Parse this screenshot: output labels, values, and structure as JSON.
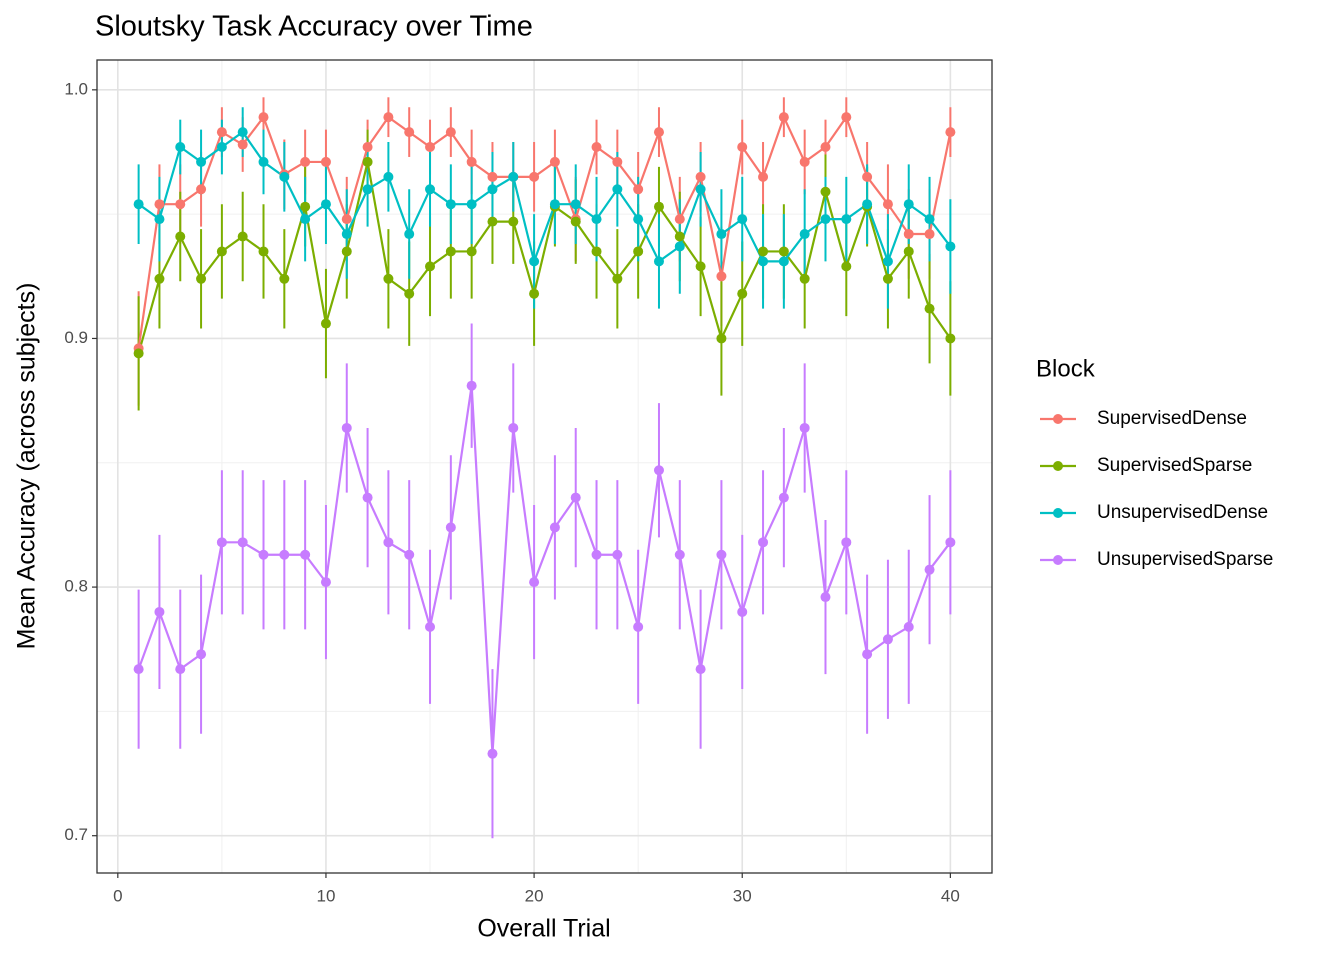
{
  "chart_data": {
    "type": "line",
    "title": "Sloutsky Task Accuracy over Time",
    "x_label": "Overall Trial",
    "y_label": "Mean Accuracy (across subjects)",
    "legend_title": "Block",
    "legend": "right",
    "grid": true,
    "xlim": [
      -1,
      42
    ],
    "ylim": [
      0.685,
      1.012
    ],
    "xticks": [
      0,
      10,
      20,
      30,
      40
    ],
    "minor_xticks": [
      5,
      15,
      25,
      35
    ],
    "yticks": [
      0.7,
      0.8,
      0.9,
      {
        "value": 1,
        "label": "1.0"
      }
    ],
    "minor_yticks": [
      0.75,
      0.85,
      0.95
    ],
    "x": [
      1,
      2,
      3,
      4,
      5,
      6,
      7,
      8,
      9,
      10,
      11,
      12,
      13,
      14,
      15,
      16,
      17,
      18,
      19,
      20,
      21,
      22,
      23,
      24,
      25,
      26,
      27,
      28,
      29,
      30,
      31,
      32,
      33,
      34,
      35,
      36,
      37,
      38,
      39,
      40
    ],
    "series": [
      {
        "name": "SupervisedDense",
        "color": "#F8766D",
        "values": [
          0.896,
          0.954,
          0.954,
          0.96,
          0.983,
          0.978,
          0.989,
          0.966,
          0.971,
          0.971,
          0.948,
          0.977,
          0.989,
          0.983,
          0.977,
          0.983,
          0.971,
          0.965,
          0.965,
          0.965,
          0.971,
          0.948,
          0.977,
          0.971,
          0.96,
          0.983,
          0.948,
          0.965,
          0.925,
          0.977,
          0.965,
          0.989,
          0.971,
          0.977,
          0.989,
          0.965,
          0.954,
          0.942,
          0.942,
          0.983
        ],
        "errors": [
          0.023,
          0.016,
          0.016,
          0.015,
          0.01,
          0.011,
          0.008,
          0.014,
          0.013,
          0.013,
          0.017,
          0.011,
          0.008,
          0.01,
          0.011,
          0.01,
          0.013,
          0.014,
          0.014,
          0.014,
          0.013,
          0.017,
          0.011,
          0.013,
          0.015,
          0.01,
          0.017,
          0.014,
          0.02,
          0.011,
          0.014,
          0.008,
          0.013,
          0.011,
          0.008,
          0.014,
          0.016,
          0.018,
          0.018,
          0.01
        ]
      },
      {
        "name": "SupervisedSparse",
        "color": "#7CAE00",
        "values": [
          0.894,
          0.924,
          0.941,
          0.924,
          0.935,
          0.941,
          0.935,
          0.924,
          0.953,
          0.906,
          0.935,
          0.971,
          0.924,
          0.918,
          0.929,
          0.935,
          0.935,
          0.947,
          0.947,
          0.918,
          0.953,
          0.947,
          0.935,
          0.924,
          0.935,
          0.953,
          0.941,
          0.929,
          0.9,
          0.918,
          0.935,
          0.935,
          0.924,
          0.959,
          0.929,
          0.953,
          0.924,
          0.935,
          0.912,
          0.9
        ],
        "errors": [
          0.023,
          0.02,
          0.018,
          0.02,
          0.019,
          0.018,
          0.019,
          0.02,
          0.016,
          0.022,
          0.019,
          0.013,
          0.02,
          0.021,
          0.02,
          0.019,
          0.019,
          0.017,
          0.017,
          0.021,
          0.016,
          0.017,
          0.019,
          0.02,
          0.019,
          0.016,
          0.018,
          0.02,
          0.023,
          0.021,
          0.019,
          0.019,
          0.02,
          0.015,
          0.02,
          0.016,
          0.02,
          0.019,
          0.022,
          0.023
        ]
      },
      {
        "name": "UnsupervisedDense",
        "color": "#00BFC4",
        "values": [
          0.954,
          0.948,
          0.977,
          0.971,
          0.977,
          0.983,
          0.971,
          0.965,
          0.948,
          0.954,
          0.942,
          0.96,
          0.965,
          0.942,
          0.96,
          0.954,
          0.954,
          0.96,
          0.965,
          0.931,
          0.954,
          0.954,
          0.948,
          0.96,
          0.948,
          0.931,
          0.937,
          0.96,
          0.942,
          0.948,
          0.931,
          0.931,
          0.942,
          0.948,
          0.948,
          0.954,
          0.931,
          0.954,
          0.948,
          0.937
        ],
        "errors": [
          0.016,
          0.017,
          0.011,
          0.013,
          0.011,
          0.01,
          0.013,
          0.014,
          0.017,
          0.016,
          0.018,
          0.015,
          0.014,
          0.018,
          0.015,
          0.016,
          0.016,
          0.015,
          0.014,
          0.019,
          0.016,
          0.016,
          0.017,
          0.015,
          0.017,
          0.019,
          0.019,
          0.015,
          0.018,
          0.017,
          0.019,
          0.019,
          0.018,
          0.017,
          0.017,
          0.016,
          0.019,
          0.016,
          0.017,
          0.019
        ]
      },
      {
        "name": "UnsupervisedSparse",
        "color": "#C77CFF",
        "values": [
          0.767,
          0.79,
          0.767,
          0.773,
          0.818,
          0.818,
          0.813,
          0.813,
          0.813,
          0.802,
          0.864,
          0.836,
          0.818,
          0.813,
          0.784,
          0.824,
          0.881,
          0.733,
          0.864,
          0.802,
          0.824,
          0.836,
          0.813,
          0.813,
          0.784,
          0.847,
          0.813,
          0.767,
          0.813,
          0.79,
          0.818,
          0.836,
          0.864,
          0.796,
          0.818,
          0.773,
          0.779,
          0.784,
          0.807,
          0.818
        ],
        "errors": [
          0.032,
          0.031,
          0.032,
          0.032,
          0.029,
          0.029,
          0.03,
          0.03,
          0.03,
          0.031,
          0.026,
          0.028,
          0.029,
          0.03,
          0.031,
          0.029,
          0.025,
          0.034,
          0.026,
          0.031,
          0.029,
          0.028,
          0.03,
          0.03,
          0.031,
          0.027,
          0.03,
          0.032,
          0.03,
          0.031,
          0.029,
          0.028,
          0.026,
          0.031,
          0.029,
          0.032,
          0.032,
          0.031,
          0.03,
          0.029
        ]
      }
    ]
  }
}
